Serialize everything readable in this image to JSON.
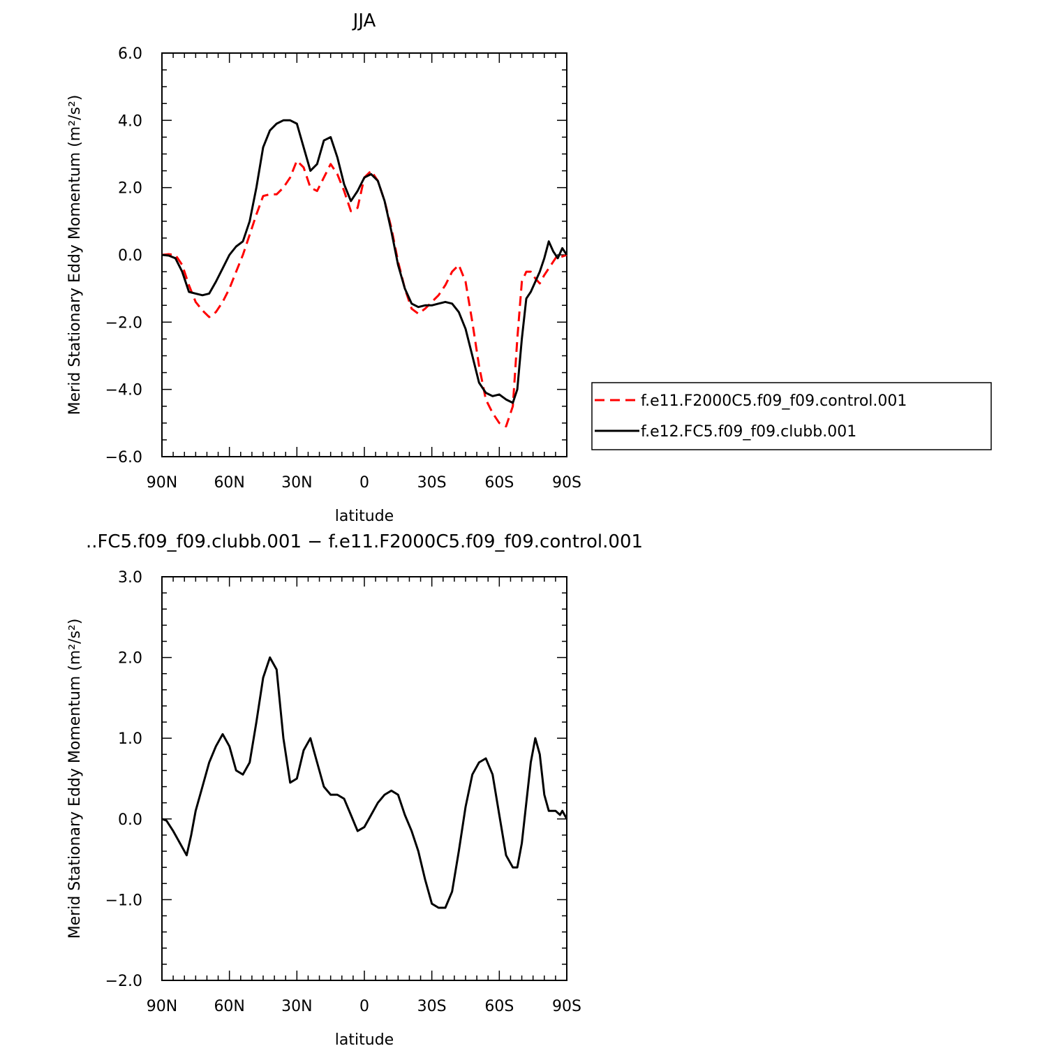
{
  "chart_data": [
    {
      "type": "line",
      "title": "JJA",
      "xlabel": "latitude",
      "ylabel": "Merid Stationary Eddy Momentum (m²/s²)",
      "xlim": [
        90,
        -90
      ],
      "ylim": [
        -6.0,
        6.0
      ],
      "xticks": [
        90,
        60,
        30,
        0,
        -30,
        -60,
        -90
      ],
      "xtick_labels": [
        "90N",
        "60N",
        "30N",
        "0",
        "30S",
        "60S",
        "90S"
      ],
      "yticks": [
        -6.0,
        -4.0,
        -2.0,
        0.0,
        2.0,
        4.0,
        6.0
      ],
      "ytick_labels": [
        "−6.0",
        "−4.0",
        "−2.0",
        "0.0",
        "2.0",
        "4.0",
        "6.0"
      ],
      "grid": false,
      "legend_position": "right",
      "series": [
        {
          "name": "f.e11.F2000C5.f09_f09.control.001",
          "color": "#ff0000",
          "dash": "dashed",
          "x": [
            90,
            87,
            84,
            81,
            78,
            75,
            72,
            69,
            66,
            63,
            60,
            57,
            54,
            51,
            48,
            45,
            42,
            39,
            36,
            33,
            30,
            27,
            24,
            21,
            18,
            15,
            12,
            9,
            6,
            3,
            0,
            -3,
            -6,
            -9,
            -12,
            -15,
            -18,
            -21,
            -24,
            -27,
            -30,
            -33,
            -36,
            -39,
            -42,
            -45,
            -48,
            -51,
            -54,
            -57,
            -60,
            -63,
            -66,
            -68,
            -70,
            -72,
            -74,
            -76,
            -78,
            -80,
            -82,
            -84,
            -86,
            -88,
            -90
          ],
          "y": [
            0.0,
            0.02,
            0.0,
            -0.3,
            -0.9,
            -1.4,
            -1.65,
            -1.85,
            -1.7,
            -1.4,
            -1.0,
            -0.5,
            0.0,
            0.6,
            1.2,
            1.75,
            1.8,
            1.8,
            2.0,
            2.3,
            2.8,
            2.6,
            2.0,
            1.9,
            2.3,
            2.7,
            2.4,
            1.9,
            1.3,
            1.4,
            2.3,
            2.5,
            2.2,
            1.6,
            0.8,
            -0.2,
            -1.0,
            -1.6,
            -1.75,
            -1.6,
            -1.4,
            -1.2,
            -0.9,
            -0.5,
            -0.3,
            -0.8,
            -2.0,
            -3.3,
            -4.3,
            -4.7,
            -5.0,
            -5.1,
            -4.5,
            -2.5,
            -0.8,
            -0.5,
            -0.5,
            -0.7,
            -0.85,
            -0.6,
            -0.4,
            -0.2,
            0.0,
            -0.05,
            0.0
          ]
        },
        {
          "name": "f.e12.FC5.f09_f09.clubb.001",
          "color": "#000000",
          "dash": "solid",
          "x": [
            90,
            87,
            84,
            81,
            78,
            75,
            72,
            69,
            66,
            63,
            60,
            57,
            54,
            51,
            48,
            45,
            42,
            39,
            36,
            33,
            30,
            27,
            24,
            21,
            18,
            15,
            12,
            9,
            6,
            3,
            0,
            -3,
            -6,
            -9,
            -12,
            -15,
            -18,
            -21,
            -24,
            -27,
            -30,
            -33,
            -36,
            -39,
            -42,
            -45,
            -48,
            -51,
            -54,
            -57,
            -60,
            -63,
            -66,
            -68,
            -70,
            -72,
            -74,
            -76,
            -78,
            -80,
            -82,
            -84,
            -86,
            -88,
            -90
          ],
          "y": [
            0.0,
            -0.02,
            -0.1,
            -0.5,
            -1.1,
            -1.15,
            -1.2,
            -1.15,
            -0.8,
            -0.4,
            0.0,
            0.25,
            0.4,
            1.0,
            2.0,
            3.2,
            3.7,
            3.9,
            4.0,
            4.0,
            3.9,
            3.2,
            2.5,
            2.7,
            3.4,
            3.5,
            2.9,
            2.1,
            1.6,
            1.9,
            2.3,
            2.4,
            2.2,
            1.6,
            0.7,
            -0.3,
            -1.0,
            -1.45,
            -1.55,
            -1.5,
            -1.5,
            -1.45,
            -1.4,
            -1.45,
            -1.7,
            -2.2,
            -3.0,
            -3.8,
            -4.1,
            -4.2,
            -4.15,
            -4.3,
            -4.4,
            -4.0,
            -2.5,
            -1.3,
            -1.1,
            -0.8,
            -0.5,
            -0.1,
            0.4,
            0.1,
            -0.1,
            0.2,
            0.0
          ]
        }
      ]
    },
    {
      "type": "line",
      "title": "..FC5.f09_f09.clubb.001 − f.e11.F2000C5.f09_f09.control.001",
      "xlabel": "latitude",
      "ylabel": "Merid Stationary Eddy Momentum (m²/s²)",
      "xlim": [
        90,
        -90
      ],
      "ylim": [
        -2.0,
        3.0
      ],
      "xticks": [
        90,
        60,
        30,
        0,
        -30,
        -60,
        -90
      ],
      "xtick_labels": [
        "90N",
        "60N",
        "30N",
        "0",
        "30S",
        "60S",
        "90S"
      ],
      "yticks": [
        -2.0,
        -1.0,
        0.0,
        1.0,
        2.0,
        3.0
      ],
      "ytick_labels": [
        "−2.0",
        "−1.0",
        "0.0",
        "1.0",
        "2.0",
        "3.0"
      ],
      "grid": false,
      "series": [
        {
          "color": "#000000",
          "dash": "solid",
          "x": [
            90,
            88,
            85,
            82,
            79,
            77,
            75,
            72,
            69,
            66,
            63,
            60,
            57,
            54,
            51,
            48,
            45,
            42,
            39,
            36,
            33,
            30,
            27,
            24,
            21,
            18,
            15,
            12,
            9,
            6,
            3,
            0,
            -3,
            -6,
            -9,
            -12,
            -15,
            -18,
            -21,
            -24,
            -27,
            -30,
            -33,
            -36,
            -39,
            -42,
            -45,
            -48,
            -51,
            -54,
            -57,
            -60,
            -63,
            -66,
            -68,
            -70,
            -72,
            -74,
            -76,
            -78,
            -80,
            -82,
            -84,
            -85,
            -87,
            -88,
            -89,
            -90
          ],
          "y": [
            0.0,
            -0.02,
            -0.15,
            -0.3,
            -0.45,
            -0.2,
            0.1,
            0.4,
            0.7,
            0.9,
            1.05,
            0.9,
            0.6,
            0.55,
            0.7,
            1.2,
            1.75,
            2.0,
            1.85,
            1.0,
            0.45,
            0.5,
            0.85,
            1.0,
            0.7,
            0.4,
            0.3,
            0.3,
            0.25,
            0.05,
            -0.15,
            -0.1,
            0.05,
            0.2,
            0.3,
            0.35,
            0.3,
            0.05,
            -0.15,
            -0.4,
            -0.75,
            -1.05,
            -1.1,
            -1.1,
            -0.9,
            -0.4,
            0.15,
            0.55,
            0.7,
            0.75,
            0.55,
            0.05,
            -0.45,
            -0.6,
            -0.6,
            -0.3,
            0.2,
            0.7,
            1.0,
            0.8,
            0.3,
            0.1,
            0.1,
            0.1,
            0.05,
            0.1,
            0.05,
            0.0
          ]
        }
      ]
    }
  ]
}
